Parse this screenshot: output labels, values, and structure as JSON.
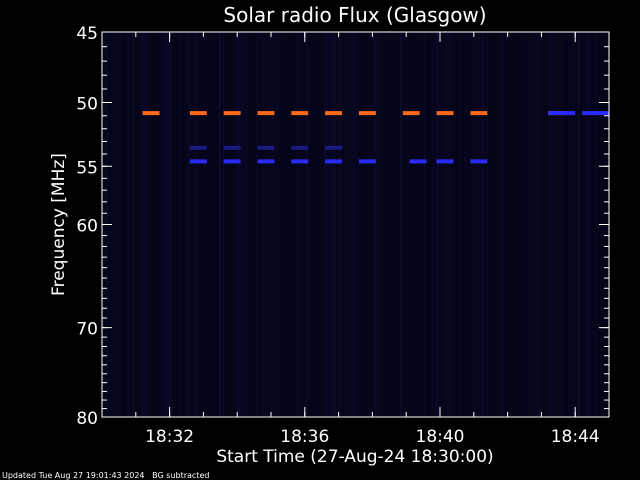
{
  "chart_data": {
    "type": "heatmap",
    "title": "Solar radio Flux (Glasgow)",
    "xlabel": "Start Time (27-Aug-24 18:30:00)",
    "ylabel": "Frequency [MHz]",
    "xlim_minutes": [
      0,
      15
    ],
    "ylim_mhz": [
      45,
      80
    ],
    "x_tick_labels": [
      "18:32",
      "18:36",
      "18:40",
      "18:44"
    ],
    "x_tick_minutes": [
      2,
      6,
      10,
      14
    ],
    "y_tick_labels": [
      "45",
      "50",
      "55",
      "60",
      "70",
      "80"
    ],
    "y_tick_values": [
      45,
      50,
      55,
      60,
      70,
      80
    ],
    "background_color": "#05051a",
    "bands": [
      {
        "freq_mhz": 50.8,
        "intensity": "high",
        "color": "#ff6a1a",
        "segments_minutes": [
          [
            1.2,
            1.7
          ],
          [
            2.6,
            3.1
          ],
          [
            3.6,
            4.1
          ],
          [
            4.6,
            5.1
          ],
          [
            5.6,
            6.1
          ],
          [
            6.6,
            7.1
          ],
          [
            7.6,
            8.1
          ],
          [
            8.9,
            9.4
          ],
          [
            9.9,
            10.4
          ],
          [
            10.9,
            11.4
          ],
          [
            13.2,
            13.7
          ]
        ]
      },
      {
        "freq_mhz": 50.8,
        "intensity": "medium",
        "color": "#2a2aff",
        "segments_minutes": [
          [
            14.2,
            15.0
          ],
          [
            13.2,
            14.0
          ]
        ]
      },
      {
        "freq_mhz": 53.5,
        "intensity": "low",
        "color": "#1a1a80",
        "segments_minutes": [
          [
            2.6,
            3.1
          ],
          [
            3.6,
            4.1
          ],
          [
            4.6,
            5.1
          ],
          [
            5.6,
            6.1
          ],
          [
            6.6,
            7.1
          ]
        ]
      },
      {
        "freq_mhz": 54.6,
        "intensity": "medium",
        "color": "#2a2aff",
        "segments_minutes": [
          [
            2.6,
            3.1
          ],
          [
            3.6,
            4.1
          ],
          [
            4.6,
            5.1
          ],
          [
            5.6,
            6.1
          ],
          [
            6.6,
            7.1
          ],
          [
            7.6,
            8.1
          ],
          [
            9.1,
            9.6
          ],
          [
            9.9,
            10.4
          ],
          [
            10.9,
            11.4
          ]
        ]
      }
    ]
  },
  "footer": {
    "updated": "Updated Tue Aug 27 19:01:43 2024",
    "note": "BG subtracted"
  }
}
